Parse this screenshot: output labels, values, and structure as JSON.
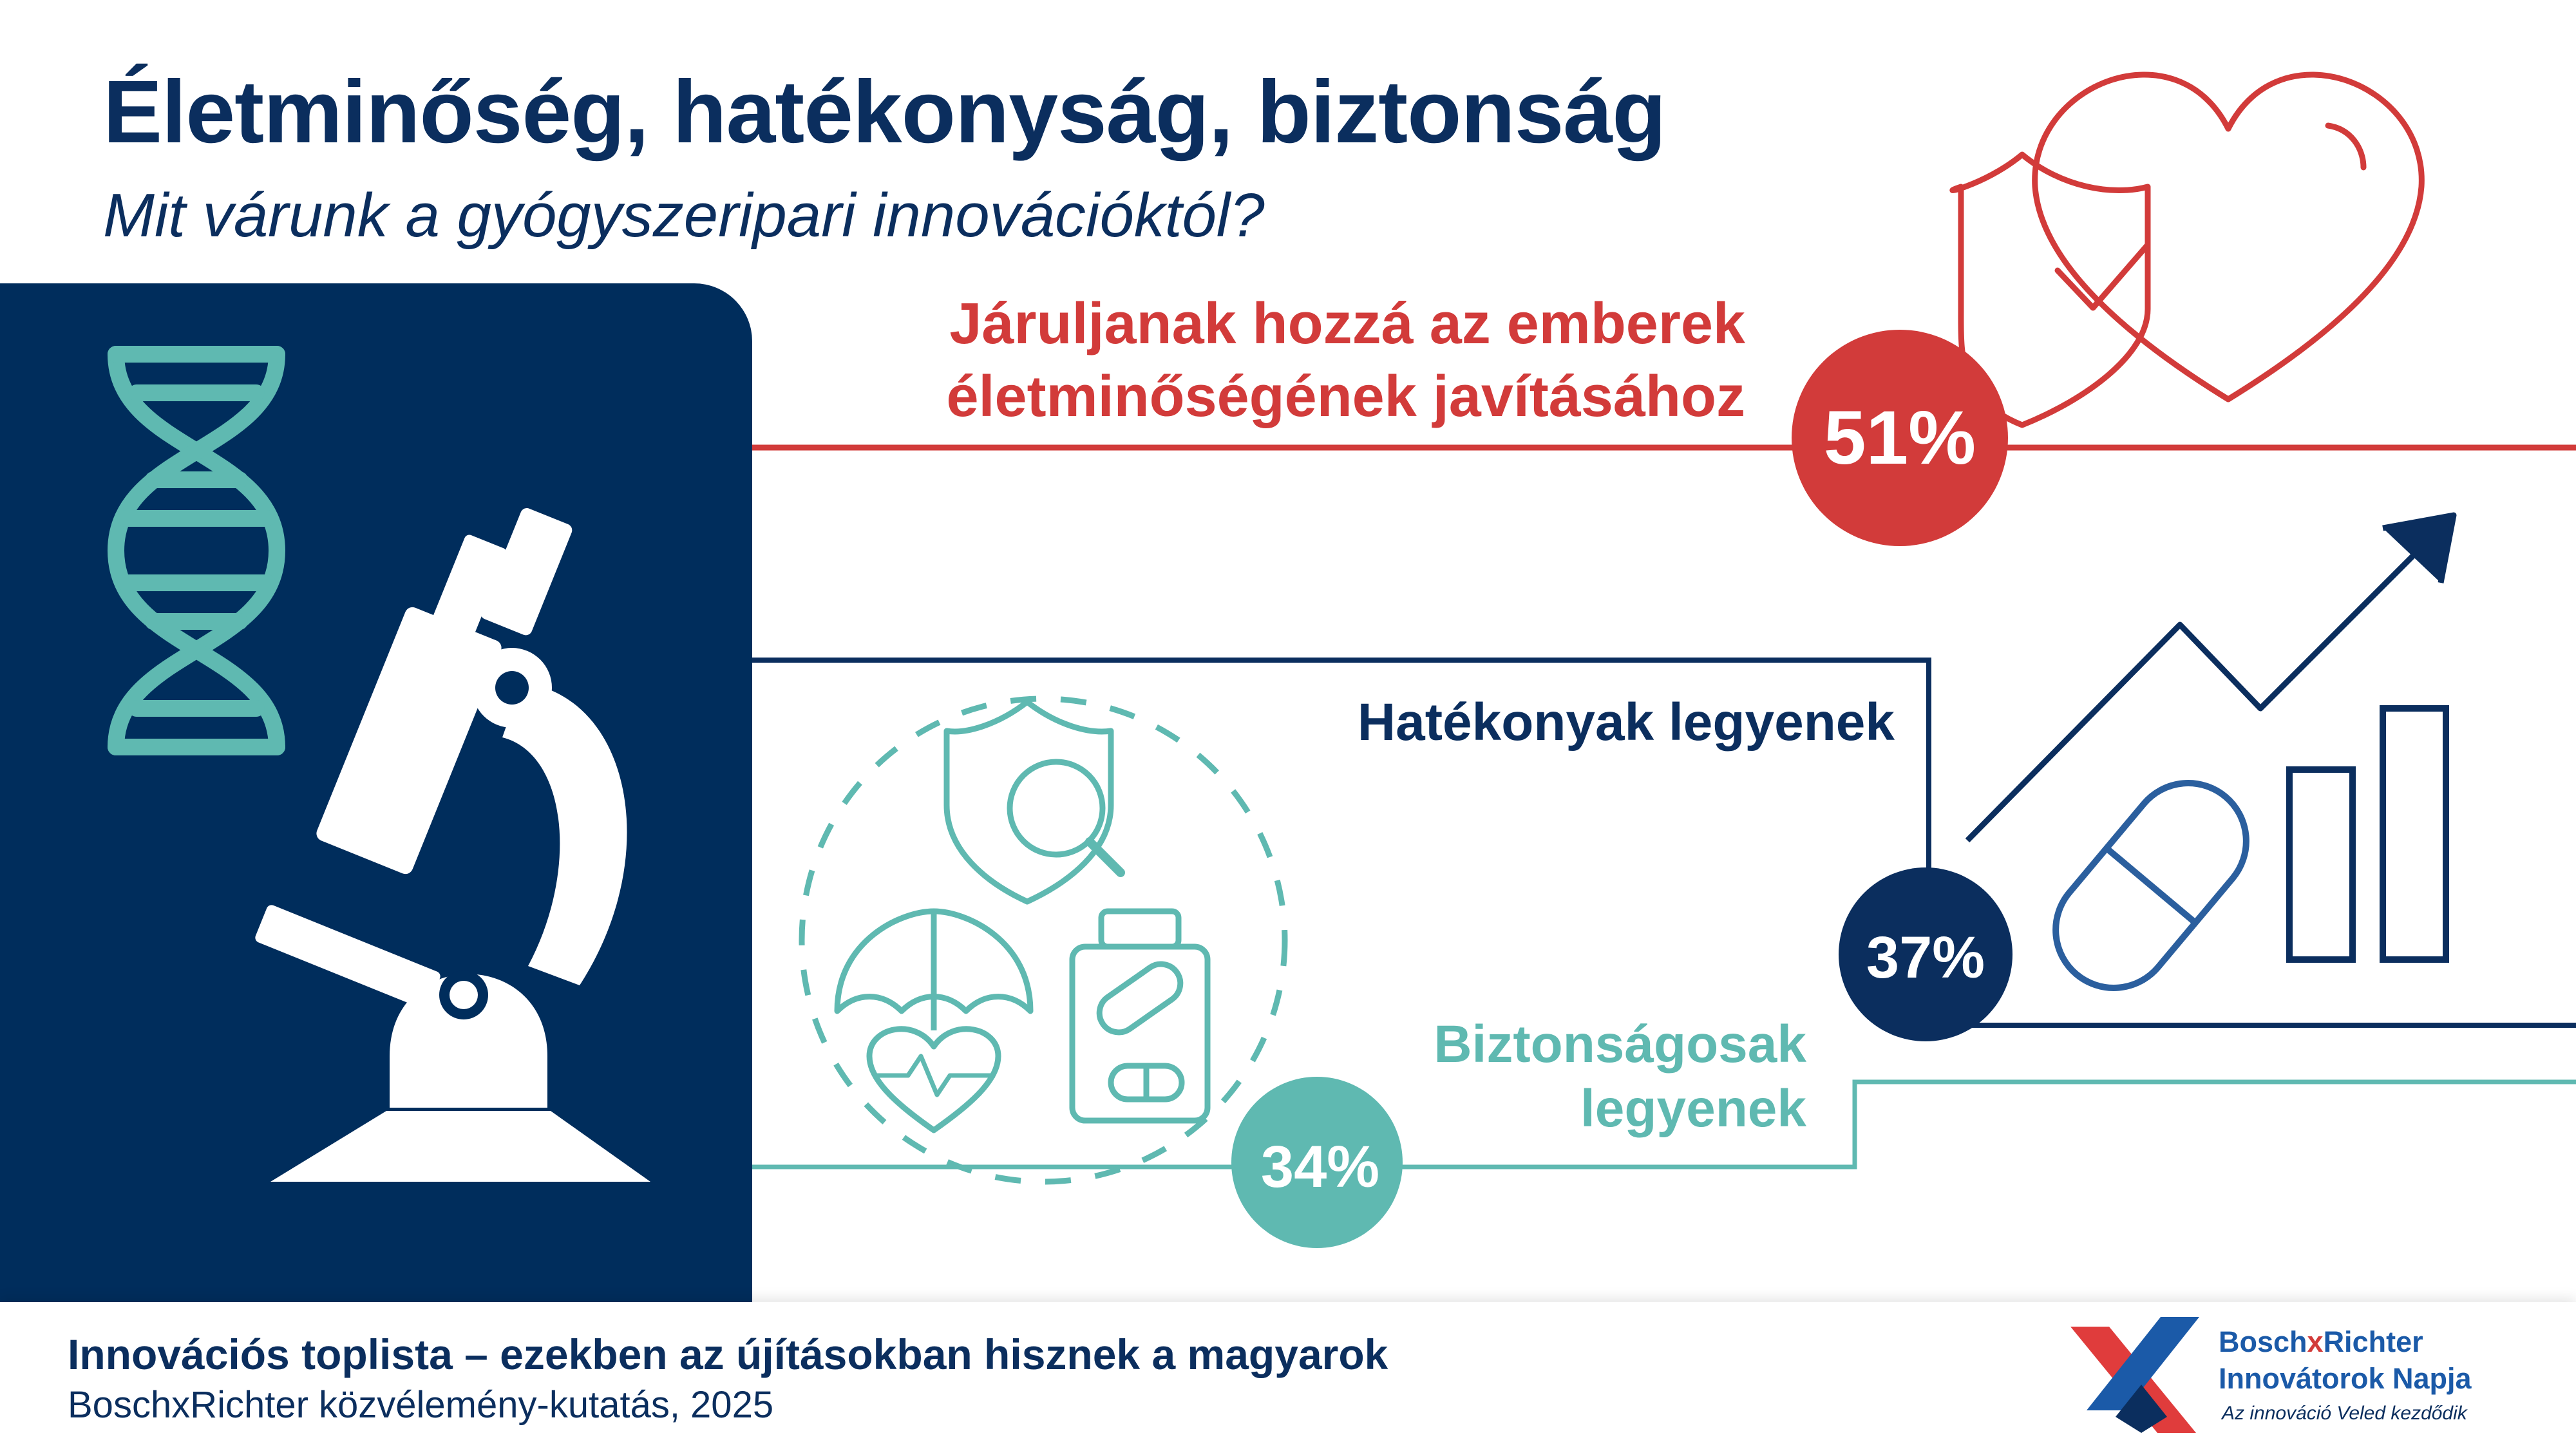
{
  "header": {
    "title": "Életminőség, hatékonyság, biztonság",
    "subtitle": "Mit várunk a gyógyszeripari innovációktól?"
  },
  "chart_data": {
    "type": "bar",
    "categories": [
      "Járuljanak hozzá az emberek életminőségének javításához",
      "Hatékonyak legyenek",
      "Biztonságosak legyenek"
    ],
    "values": [
      51,
      37,
      34
    ],
    "value_labels": [
      "51%",
      "37%",
      "34%"
    ],
    "label_lines": [
      [
        "Járuljanak hozzá az emberek",
        "életminőségének javításához"
      ],
      [
        "Hatékonyak legyenek"
      ],
      [
        "Biztonságosak",
        "legyenek"
      ]
    ],
    "title": "Életminőség, hatékonyság, biztonság",
    "subtitle": "Mit várunk a gyógyszeripari innovációktól?",
    "xlabel": "",
    "ylabel": "",
    "colors": [
      "#d23b3a",
      "#0b2e5e",
      "#5fb9b1"
    ]
  },
  "icons": {
    "left_panel": [
      "dna-icon",
      "microscope-icon"
    ],
    "item1": [
      "shield-check-icon",
      "heart-icon"
    ],
    "item2": [
      "growth-arrow-icon",
      "bar-chart-icon",
      "pill-capsule-icon"
    ],
    "item3": [
      "shield-search-icon",
      "umbrella-heart-icon",
      "pill-bottle-icon"
    ]
  },
  "footer": {
    "title": "Innovációs toplista – ezekben az újításokban hisznek a magyarok",
    "source": "BoschxRichter közvélemény-kutatás, 2025"
  },
  "brand": {
    "name_part1": "Bosch",
    "name_x": "x",
    "name_part2": "Richter",
    "line2": "Innovátorok Napja",
    "tagline": "Az innováció Veled kezdődik",
    "logo_colors": [
      "#e03c3c",
      "#1b5aa8"
    ]
  },
  "palette": {
    "navy": "#002d5c",
    "red": "#d23b3a",
    "teal": "#5fb9b1",
    "text_navy": "#0b2e5e"
  }
}
